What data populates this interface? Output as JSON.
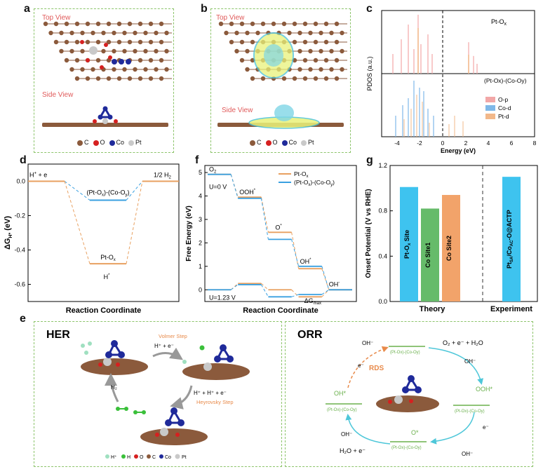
{
  "panel_labels": {
    "a": "a",
    "b": "b",
    "c": "c",
    "d": "d",
    "e": "e",
    "f": "f",
    "g": "g"
  },
  "structure": {
    "top_view": "Top View",
    "side_view": "Side View",
    "legend": [
      "C",
      "O",
      "Co",
      "Pt"
    ]
  },
  "colors": {
    "C": "#8b5a3c",
    "O": "#d62020",
    "Co": "#1f2a9a",
    "Pt": "#c9c9c9",
    "H_plus": "#9fe0c0",
    "H": "#3ac03a",
    "orange": "#e8a060",
    "blue": "#3aa0e0",
    "green": "#6ab04c",
    "frame": "#8cc46a"
  },
  "pdos": {
    "ylabel": "PDOS (a.u.)",
    "xlabel": "Energy (eV)",
    "top_label": "Pt-O",
    "top_label_sub": "x",
    "bottom_label": "(Pt-O",
    "bottom_label_full": "(Pt-Ox)-(Co-Oy)",
    "xticks": [
      "-4",
      "-2",
      "0",
      "2",
      "4",
      "6",
      "8"
    ],
    "legend": [
      "O-p",
      "Co-d",
      "Pt-d"
    ]
  },
  "chart_data": [
    {
      "type": "line",
      "panel": "d",
      "ylabel": "ΔG",
      "ylabel_sub": "H*",
      "ylabel_unit": "(eV)",
      "xlabel": "Reaction Coordinate",
      "yticks": [
        "0.0",
        "-0.2",
        "-0.4",
        "-0.6"
      ],
      "ylim": [
        -0.7,
        0.1
      ],
      "states": [
        "H⁺ + e",
        "H*",
        "1/2 H₂"
      ],
      "annotations": {
        "left": "H",
        "left_sup": "+",
        "left_tail": " + e",
        "right": "1/2 H",
        "right_sub": "2",
        "mid": "H",
        "mid_sup": "*"
      },
      "series": [
        {
          "name": "(Pt-Ox)-(Co-Oy)",
          "label_text": "(Pt-O",
          "values": [
            0.0,
            -0.11,
            0.0
          ],
          "color": "#3aa0e0"
        },
        {
          "name": "Pt-Ox",
          "label_text": "Pt-O",
          "values": [
            0.0,
            -0.48,
            0.0
          ],
          "color": "#e8a060"
        }
      ]
    },
    {
      "type": "line",
      "panel": "f",
      "ylabel": "Free Energy (eV)",
      "xlabel": "Reaction Coordinate",
      "yticks": [
        "5",
        "4",
        "3",
        "2",
        "1",
        "0"
      ],
      "ylim": [
        -0.5,
        5.3
      ],
      "species": [
        "O₂",
        "OOH*",
        "O*",
        "OH*",
        "OH⁻"
      ],
      "annotations": {
        "u0": "U=0 V",
        "u123": "U=1.23 V",
        "dg": "ΔG",
        "dg_sub": "max",
        "o2": "O",
        "o2_sub": "2",
        "ooh": "OOH",
        "o": "O",
        "oh": "OH",
        "ohm": "OH"
      },
      "legend": [
        {
          "name": "Pt-Ox",
          "label": "Pt-O",
          "color": "#e8a060"
        },
        {
          "name": "(Pt-Ox)-(Co-Oy)",
          "label": "(Pt-O",
          "color": "#3aa0e0"
        }
      ],
      "series": [
        {
          "name": "Pt-Ox U=0",
          "values": [
            4.92,
            3.95,
            2.45,
            0.9,
            0.0
          ],
          "color": "#e8a060"
        },
        {
          "name": "(Pt-Ox)-(Co-Oy) U=0",
          "values": [
            4.92,
            3.9,
            2.15,
            1.0,
            0.0
          ],
          "color": "#3aa0e0"
        },
        {
          "name": "Pt-Ox U=1.23",
          "values": [
            0.0,
            0.27,
            0.0,
            -0.3,
            0.0
          ],
          "color": "#e8a060"
        },
        {
          "name": "(Pt-Ox)-(Co-Oy) U=1.23",
          "values": [
            0.0,
            0.22,
            -0.3,
            -0.2,
            0.0
          ],
          "color": "#3aa0e0"
        }
      ]
    },
    {
      "type": "bar",
      "panel": "g",
      "ylabel": "Onset Potential (V vs RHE)",
      "yticks": [
        "1.2",
        "0.8",
        "0.4",
        "0.0"
      ],
      "ylim": [
        0,
        1.2
      ],
      "groups": [
        "Theory",
        "Experiment"
      ],
      "categories": [
        "Pt-Ox Site",
        "Co Site1",
        "Co Site2",
        "PtSA/CoAC-O@ACTP"
      ],
      "labels": [
        "Pt-O",
        "Co Site1",
        "Co Site2",
        "Pt"
      ],
      "values": [
        1.01,
        0.82,
        0.94,
        1.1
      ],
      "colors": [
        "#3ec3ef",
        "#66bb6a",
        "#f2a36a",
        "#3ec3ef"
      ]
    }
  ],
  "her": {
    "title": "HER",
    "volmer": "Volmer Step",
    "volmer_eq": "H⁺ + e⁻",
    "heyrovsky": "Heyrovsky Step",
    "heyrovsky_eq": "H⁺ + H⁺ + e⁻",
    "h2": "H₂",
    "legend": [
      "H⁺",
      "H",
      "O",
      "C",
      "Co",
      "Pt"
    ]
  },
  "orr": {
    "title": "ORR",
    "rds": "RDS",
    "site_label": "(Pt-Ox)-(Co-Oy)",
    "o2_reactants": "O₂ + e⁻ + H₂O",
    "ohm": "OH⁻",
    "ooh": "OOH*",
    "o": "O*",
    "oh": "OH*",
    "em": "e⁻",
    "h2o": "H₂O + e⁻"
  }
}
